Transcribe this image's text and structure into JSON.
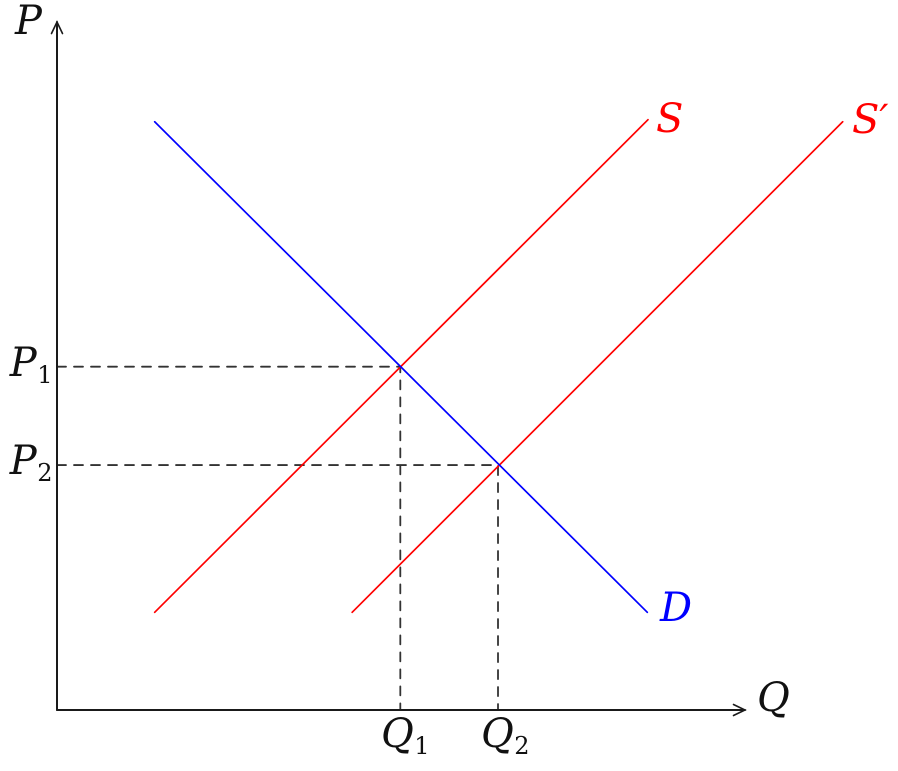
{
  "chart_data": {
    "type": "line",
    "title": "",
    "axes": {
      "x_label": "Q",
      "y_label": "P",
      "x_range": [
        0,
        100
      ],
      "y_range": [
        0,
        100
      ],
      "arrows": true,
      "grid": false
    },
    "series": [
      {
        "name": "S",
        "role": "supply",
        "color": "#ff0000",
        "points": [
          [
            14.2,
            14.2
          ],
          [
            85.9,
            85.8
          ]
        ]
      },
      {
        "name": "S′",
        "role": "supply-shifted",
        "color": "#ff0000",
        "points": [
          [
            42.9,
            14.2
          ],
          [
            114.2,
            85.5
          ]
        ]
      },
      {
        "name": "D",
        "role": "demand",
        "color": "#0000ff",
        "points": [
          [
            14.2,
            85.5
          ],
          [
            85.8,
            14.2
          ]
        ]
      }
    ],
    "equilibria": [
      {
        "x": 49.9,
        "y": 49.9,
        "price_label": {
          "base": "P",
          "sub": "1"
        },
        "quantity_label": {
          "base": "Q",
          "sub": "1"
        }
      },
      {
        "x": 64.1,
        "y": 35.6,
        "price_label": {
          "base": "P",
          "sub": "2"
        },
        "quantity_label": {
          "base": "Q",
          "sub": "2"
        }
      }
    ],
    "colors": {
      "axis": "#1a1a1a",
      "dashed_guide": "#333333",
      "supply": "#ff0000",
      "demand": "#0000ff",
      "background": "#ffffff"
    },
    "legend_position": "none"
  }
}
